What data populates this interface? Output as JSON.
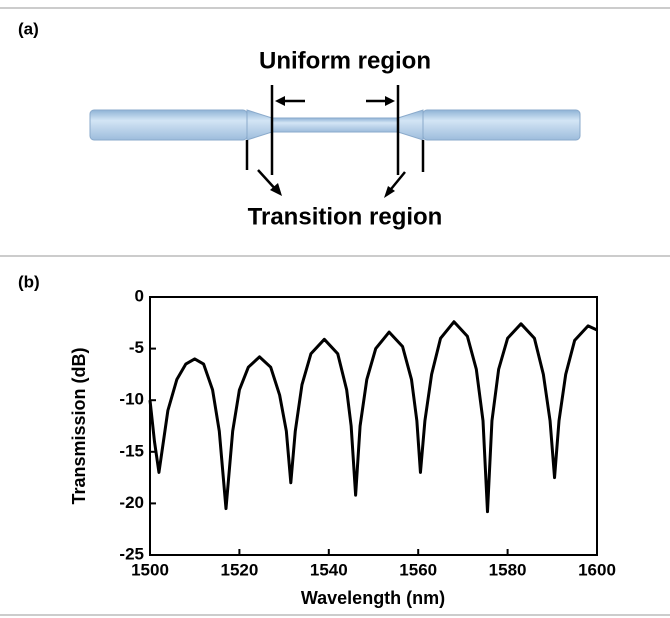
{
  "diagram": {
    "label": "(a)",
    "uniform_label": "Uniform region",
    "transition_label": "Transition region"
  },
  "chart_data": {
    "type": "line",
    "panel_label": "(b)",
    "x_label": "Wavelength (nm)",
    "y_label": "Transmission (dB)",
    "color": "#000000",
    "x": [
      1500,
      1501,
      1502,
      1503,
      1504,
      1506,
      1508,
      1510,
      1512,
      1514,
      1515.5,
      1517,
      1518.5,
      1520,
      1522,
      1524.5,
      1527,
      1529,
      1530.5,
      1531.5,
      1532.5,
      1534,
      1536,
      1539,
      1542,
      1544,
      1545,
      1546,
      1547,
      1548.5,
      1550.5,
      1553.5,
      1556.5,
      1558.5,
      1559.7,
      1560.5,
      1561.5,
      1563,
      1565,
      1568,
      1571,
      1573,
      1574.5,
      1575.5,
      1576.5,
      1578,
      1580,
      1583,
      1586,
      1588,
      1589.5,
      1590.5,
      1591.5,
      1593,
      1595,
      1598,
      1600
    ],
    "values": [
      -10,
      -14,
      -17,
      -14,
      -11,
      -8,
      -6.5,
      -6,
      -6.5,
      -9,
      -13,
      -20.5,
      -13,
      -9,
      -6.8,
      -5.8,
      -6.8,
      -9.5,
      -13,
      -18,
      -13,
      -8.5,
      -5.5,
      -4.1,
      -5.5,
      -9,
      -12.5,
      -19.2,
      -12.5,
      -8,
      -5,
      -3.4,
      -4.8,
      -8,
      -12,
      -17,
      -12,
      -7.5,
      -4,
      -2.4,
      -3.8,
      -7,
      -12,
      -20.8,
      -12,
      -7,
      -4,
      -2.6,
      -4,
      -7.5,
      -12,
      -17.5,
      -12,
      -7.5,
      -4.2,
      -2.8,
      -3.2
    ],
    "xlim": [
      1500,
      1600
    ],
    "xticks": [
      1500,
      1520,
      1540,
      1560,
      1580,
      1600
    ],
    "ylim": [
      -25,
      0
    ],
    "yticks": [
      0,
      -5,
      -10,
      -15,
      -20,
      -25
    ]
  }
}
